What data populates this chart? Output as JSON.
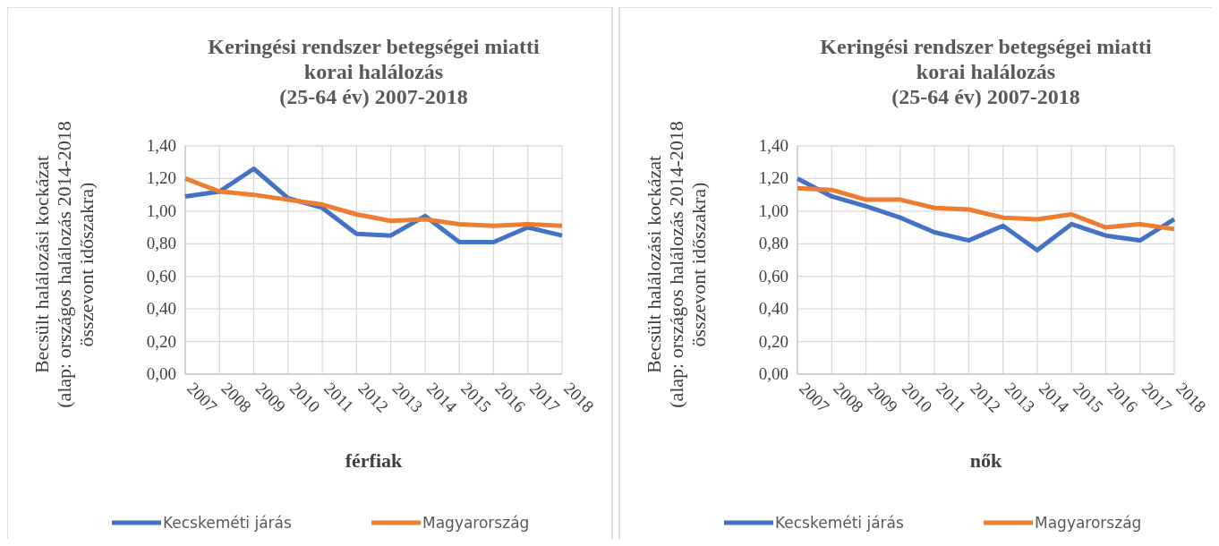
{
  "chart_data": [
    {
      "type": "line",
      "title": "Keringési rendszer betegségei miatti\nkorai halálozás\n(25-64 év)  2007-2018",
      "xlabel": "férfiak",
      "ylabel": "Becsült halálozási kockázat\n(alap: országos halálozás 2014-2018\nösszevont időszakra)",
      "categories": [
        "2007",
        "2008",
        "2009",
        "2010",
        "2011",
        "2012",
        "2013",
        "2014",
        "2015",
        "2016",
        "2017",
        "2018"
      ],
      "ylim": [
        0,
        1.4
      ],
      "yticks": [
        {
          "value": 0,
          "label": "0,00"
        },
        {
          "value": 0.2,
          "label": "0,20"
        },
        {
          "value": 0.4,
          "label": "0,40"
        },
        {
          "value": 0.6,
          "label": "0,60"
        },
        {
          "value": 0.8,
          "label": "0,80"
        },
        {
          "value": 1.0,
          "label": "1,00"
        },
        {
          "value": 1.2,
          "label": "1,20"
        },
        {
          "value": 1.4,
          "label": "1,40"
        }
      ],
      "grid": true,
      "legend": "bottom",
      "marker": "none",
      "series": [
        {
          "name": "Kecskeméti járás",
          "color": "#4472c4",
          "values": [
            1.09,
            1.12,
            1.26,
            1.08,
            1.02,
            0.86,
            0.85,
            0.97,
            0.81,
            0.81,
            0.9,
            0.85
          ]
        },
        {
          "name": "Magyarország",
          "color": "#ed7d31",
          "values": [
            1.2,
            1.12,
            1.1,
            1.07,
            1.04,
            0.98,
            0.94,
            0.95,
            0.92,
            0.91,
            0.92,
            0.91
          ]
        }
      ]
    },
    {
      "type": "line",
      "title": "Keringési rendszer betegségei miatti\nkorai halálozás\n(25-64 év) 2007-2018",
      "xlabel": "nők",
      "ylabel": "Becsült halálozási kockázat\n(alap: országos halálozás 2014-2018\nösszevont időszakra)",
      "categories": [
        "2007",
        "2008",
        "2009",
        "2010",
        "2011",
        "2012",
        "2013",
        "2014",
        "2015",
        "2016",
        "2017",
        "2018"
      ],
      "ylim": [
        0,
        1.4
      ],
      "yticks": [
        {
          "value": 0,
          "label": "0,00"
        },
        {
          "value": 0.2,
          "label": "0,20"
        },
        {
          "value": 0.4,
          "label": "0,40"
        },
        {
          "value": 0.6,
          "label": "0,60"
        },
        {
          "value": 0.8,
          "label": "0,80"
        },
        {
          "value": 1.0,
          "label": "1,00"
        },
        {
          "value": 1.2,
          "label": "1,20"
        },
        {
          "value": 1.4,
          "label": "1,40"
        }
      ],
      "grid": true,
      "legend": "bottom",
      "marker": "none",
      "series": [
        {
          "name": "Kecskeméti járás",
          "color": "#4472c4",
          "values": [
            1.2,
            1.09,
            1.03,
            0.96,
            0.87,
            0.82,
            0.91,
            0.76,
            0.92,
            0.85,
            0.82,
            0.95
          ]
        },
        {
          "name": "Magyarország",
          "color": "#ed7d31",
          "values": [
            1.14,
            1.13,
            1.07,
            1.07,
            1.02,
            1.01,
            0.96,
            0.95,
            0.98,
            0.9,
            0.92,
            0.89
          ]
        }
      ]
    }
  ]
}
